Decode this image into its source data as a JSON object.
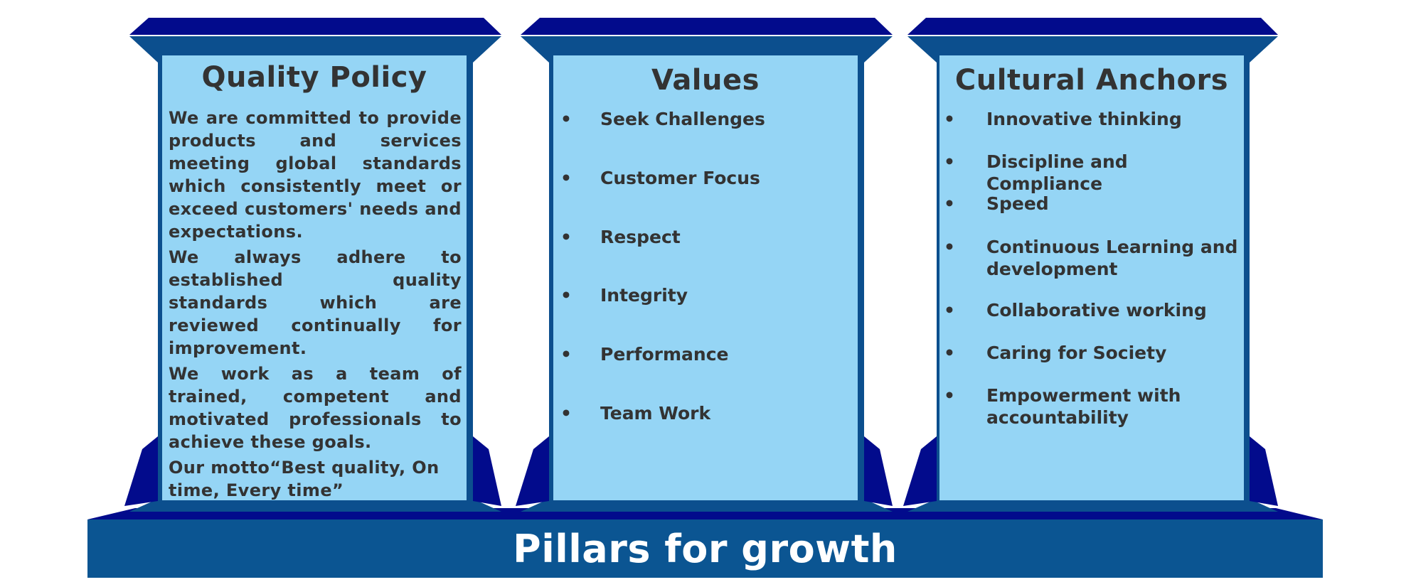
{
  "colors": {
    "pillar_top": "#020b8c",
    "pillar_body": "#0c4f8e",
    "panel_fill": "#95d5f5",
    "base": "#0b5592",
    "text_dark": "#333333",
    "text_light": "#ffffff"
  },
  "pillars": [
    {
      "title": "Quality Policy",
      "paragraphs": [
        "We are committed to provide products and services meeting global standards which consistently meet or exceed customers' needs and expectations.",
        "We always adhere to established quality standards which are reviewed continually for improvement.",
        "We work as a team of trained, competent and motivated professionals to achieve these goals.",
        "Our motto“Best quality, On time, Every time”"
      ]
    },
    {
      "title": "Values",
      "items": [
        "Seek Challenges",
        "Customer Focus",
        "Respect",
        "Integrity",
        "Performance",
        "Team Work"
      ]
    },
    {
      "title": "Cultural Anchors",
      "items": [
        "Innovative thinking",
        "Discipline and Compliance",
        "Speed",
        "Continuous Learning and development",
        "Collaborative working",
        "Caring for Society",
        "Empowerment with accountability"
      ]
    }
  ],
  "footer": {
    "label": "Pillars for growth"
  }
}
